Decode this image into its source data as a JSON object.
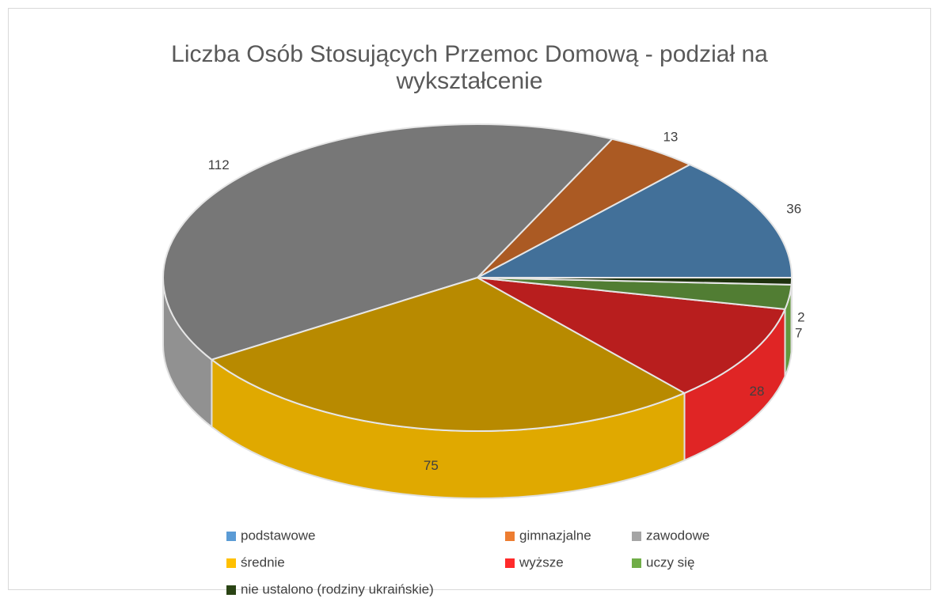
{
  "chart_data": {
    "type": "pie",
    "title": "Liczba Osób Stosujących Przemoc Domową - podział na wykształcenie",
    "categories": [
      "podstawowe",
      "gimnazjalne",
      "zawodowe",
      "średnie",
      "wyższe",
      "uczy się",
      "nie ustalono (rodziny ukraińskie)"
    ],
    "values": [
      36,
      13,
      112,
      75,
      28,
      7,
      2
    ],
    "colors": [
      "#5b9bd5",
      "#ed7d31",
      "#a5a5a5",
      "#ffc000",
      "#ff2a2a",
      "#70ad47",
      "#2a4414"
    ],
    "legend": "bottom"
  }
}
